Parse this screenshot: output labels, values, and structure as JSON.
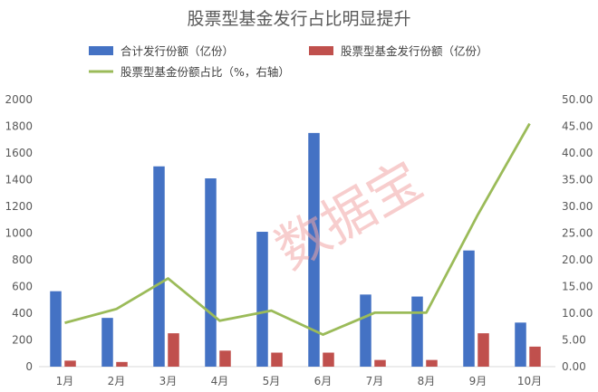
{
  "chart_data": {
    "type": "bar",
    "title": "股票型基金发行占比明显提升",
    "categories": [
      "1月",
      "2月",
      "3月",
      "4月",
      "5月",
      "6月",
      "7月",
      "8月",
      "9月",
      "10月"
    ],
    "series": [
      {
        "name": "合计发行份额（亿份）",
        "type": "bar",
        "axis": "left",
        "color": "#4472c4",
        "values": [
          565,
          365,
          1500,
          1410,
          1010,
          1750,
          540,
          525,
          870,
          330
        ]
      },
      {
        "name": "股票型基金发行份额（亿份）",
        "type": "bar",
        "axis": "left",
        "color": "#c0504d",
        "values": [
          45,
          35,
          250,
          120,
          105,
          105,
          50,
          50,
          250,
          150
        ]
      },
      {
        "name": "股票型基金份额占比（%，右轴）",
        "type": "line",
        "axis": "right",
        "color": "#9bbb59",
        "values": [
          8.2,
          10.8,
          16.5,
          8.6,
          10.5,
          6.0,
          10.1,
          10.1,
          28.5,
          45.5
        ]
      }
    ],
    "left_axis": {
      "ylim": [
        0,
        2000
      ],
      "ticks": [
        "0",
        "200",
        "400",
        "600",
        "800",
        "1000",
        "1200",
        "1400",
        "1600",
        "1800",
        "2000"
      ]
    },
    "right_axis": {
      "ylim": [
        0,
        50
      ],
      "ticks": [
        "0.00",
        "5.00",
        "10.00",
        "15.00",
        "20.00",
        "25.00",
        "30.00",
        "35.00",
        "40.00",
        "45.00",
        "50.00"
      ]
    },
    "grid": false,
    "legend_position": "top"
  },
  "watermark": "数据宝"
}
